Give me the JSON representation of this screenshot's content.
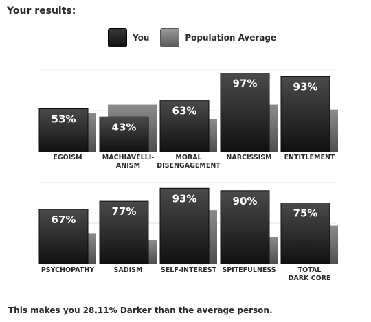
{
  "heading": "Your results:",
  "legend": {
    "you": "You",
    "avg": "Population Average"
  },
  "footer": "This makes you 28.11% Darker than the average person.",
  "colors": {
    "you_top": "#4a4a4a",
    "you_bottom": "#111111",
    "avg_top": "#8c8c8c",
    "avg_bottom": "#4e4e4e"
  },
  "chart_data": [
    {
      "type": "bar",
      "categories": [
        [
          "EGOISM"
        ],
        [
          "MACHIAVELLI-",
          "ANISM"
        ],
        [
          "MORAL",
          "DISENGAGEMENT"
        ],
        [
          "NARCISSISM"
        ],
        [
          "ENTITLEMENT"
        ]
      ],
      "series": [
        {
          "name": "You",
          "values": [
            53,
            43,
            63,
            97,
            93
          ],
          "labels": [
            "53%",
            "43%",
            "63%",
            "97%",
            "93%"
          ]
        },
        {
          "name": "Population Average",
          "values": [
            48,
            58,
            40,
            58,
            52
          ]
        }
      ],
      "ylim": [
        0,
        100
      ],
      "grid": true
    },
    {
      "type": "bar",
      "categories": [
        [
          "PSYCHOPATHY"
        ],
        [
          "SADISM"
        ],
        [
          "SELF-INTEREST"
        ],
        [
          "SPITEFULNESS"
        ],
        [
          "TOTAL",
          "DARK CORE"
        ]
      ],
      "series": [
        {
          "name": "You",
          "values": [
            67,
            77,
            93,
            90,
            75
          ],
          "labels": [
            "67%",
            "77%",
            "93%",
            "90%",
            "75%"
          ]
        },
        {
          "name": "Population Average",
          "values": [
            37,
            29,
            66,
            33,
            47
          ]
        }
      ],
      "ylim": [
        0,
        100
      ],
      "grid": true
    }
  ]
}
